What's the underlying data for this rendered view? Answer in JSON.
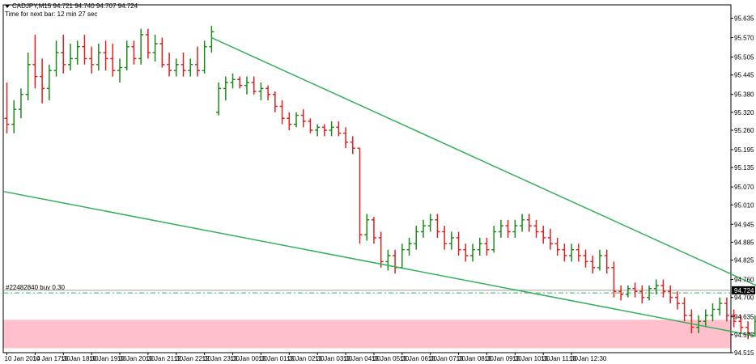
{
  "header": {
    "symbol_line": "CADJPY,M15  94.721 94.740 94.707 94.724",
    "timer_line": "Time for next bar: 12 min 27 sec"
  },
  "order": {
    "label": "#22482840 buy 0.30",
    "price": 94.715
  },
  "current_price": {
    "label": "94.724",
    "value": 94.724
  },
  "colors": {
    "bull": "#1a8a1a",
    "bear": "#e02020",
    "trendline": "#33b05a",
    "zone": "#ffc0cb",
    "arrow": "#e02020",
    "price_tag_bg": "#000000"
  },
  "chart_data": {
    "type": "bar",
    "title": "",
    "xlabel": "",
    "ylabel": "",
    "ylim": [
      94.515,
      95.68
    ],
    "yticks": [
      "95.635",
      "95.570",
      "95.505",
      "95.445",
      "95.380",
      "95.320",
      "95.260",
      "95.195",
      "95.135",
      "95.070",
      "95.010",
      "94.945",
      "94.885",
      "94.825",
      "94.760",
      "94.700",
      "94.635",
      "94.575",
      "94.515"
    ],
    "xticks": [
      "10 Jan 2014",
      "10 Jan 17:30",
      "10 Jan 18:30",
      "10 Jan 19:30",
      "10 Jan 20:30",
      "10 Jan 21:30",
      "12 Jan 22:30",
      "12 Jan 23:30",
      "13 Jan 00:30",
      "13 Jan 01:30",
      "13 Jan 02:30",
      "13 Jan 03:30",
      "13 Jan 04:30",
      "13 Jan 05:30",
      "13 Jan 06:30",
      "13 Jan 07:30",
      "13 Jan 08:30",
      "13 Jan 09:30",
      "13 Jan 10:30",
      "13 Jan 11:30",
      "13 Jan 12:30"
    ],
    "grid": false,
    "bars_per_tick": 4,
    "ohlc": [
      [
        95.3,
        95.42,
        95.25,
        95.28
      ],
      [
        95.28,
        95.36,
        95.25,
        95.33
      ],
      [
        95.33,
        95.4,
        95.3,
        95.38
      ],
      [
        95.38,
        95.52,
        95.36,
        95.48
      ],
      [
        95.48,
        95.58,
        95.4,
        95.44
      ],
      [
        95.44,
        95.5,
        95.35,
        95.4
      ],
      [
        95.4,
        95.48,
        95.36,
        95.46
      ],
      [
        95.46,
        95.56,
        95.44,
        95.52
      ],
      [
        95.52,
        95.58,
        95.45,
        95.48
      ],
      [
        95.48,
        95.55,
        95.46,
        95.5
      ],
      [
        95.5,
        95.56,
        95.48,
        95.54
      ],
      [
        95.54,
        95.58,
        95.48,
        95.5
      ],
      [
        95.5,
        95.54,
        95.45,
        95.48
      ],
      [
        95.48,
        95.55,
        95.46,
        95.52
      ],
      [
        95.52,
        95.56,
        95.46,
        95.5
      ],
      [
        95.5,
        95.55,
        95.44,
        95.46
      ],
      [
        95.46,
        95.5,
        95.42,
        95.47
      ],
      [
        95.47,
        95.56,
        95.46,
        95.54
      ],
      [
        95.54,
        95.56,
        95.48,
        95.5
      ],
      [
        95.5,
        95.6,
        95.48,
        95.58
      ],
      [
        95.58,
        95.6,
        95.5,
        95.52
      ],
      [
        95.52,
        95.58,
        95.49,
        95.55
      ],
      [
        95.55,
        95.57,
        95.47,
        95.48
      ],
      [
        95.48,
        95.52,
        95.44,
        95.46
      ],
      [
        95.46,
        95.5,
        95.44,
        95.48
      ],
      [
        95.48,
        95.52,
        95.44,
        95.46
      ],
      [
        95.46,
        95.5,
        95.44,
        95.48
      ],
      [
        95.48,
        95.54,
        95.44,
        95.46
      ],
      [
        95.46,
        95.56,
        95.45,
        95.54
      ],
      [
        95.54,
        95.61,
        95.52,
        95.59
      ],
      [
        95.32,
        95.42,
        95.31,
        95.4
      ],
      [
        95.4,
        95.44,
        95.36,
        95.42
      ],
      [
        95.42,
        95.45,
        95.4,
        95.43
      ],
      [
        95.43,
        95.44,
        95.4,
        95.41
      ],
      [
        95.41,
        95.44,
        95.38,
        95.42
      ],
      [
        95.42,
        95.44,
        95.38,
        95.39
      ],
      [
        95.39,
        95.42,
        95.36,
        95.4
      ],
      [
        95.4,
        95.41,
        95.36,
        95.38
      ],
      [
        95.38,
        95.39,
        95.32,
        95.34
      ],
      [
        95.34,
        95.36,
        95.28,
        95.3
      ],
      [
        95.3,
        95.32,
        95.26,
        95.28
      ],
      [
        95.28,
        95.32,
        95.27,
        95.31
      ],
      [
        95.31,
        95.33,
        95.27,
        95.29
      ],
      [
        95.29,
        95.3,
        95.25,
        95.26
      ],
      [
        95.26,
        95.28,
        95.24,
        95.27
      ],
      [
        95.27,
        95.28,
        95.24,
        95.26
      ],
      [
        95.26,
        95.29,
        95.24,
        95.27
      ],
      [
        95.27,
        95.29,
        95.24,
        95.25
      ],
      [
        95.25,
        95.27,
        95.2,
        95.22
      ],
      [
        95.22,
        95.24,
        95.18,
        95.2
      ],
      [
        95.2,
        95.2,
        94.88,
        94.91
      ],
      [
        94.91,
        94.98,
        94.89,
        94.96
      ],
      [
        94.96,
        94.97,
        94.88,
        94.9
      ],
      [
        94.9,
        94.92,
        94.8,
        94.82
      ],
      [
        94.82,
        94.86,
        94.79,
        94.84
      ],
      [
        94.84,
        94.86,
        94.78,
        94.8
      ],
      [
        94.8,
        94.88,
        94.8,
        94.86
      ],
      [
        94.86,
        94.9,
        94.84,
        94.88
      ],
      [
        94.88,
        94.94,
        94.86,
        94.92
      ],
      [
        94.92,
        94.96,
        94.9,
        94.94
      ],
      [
        94.94,
        94.98,
        94.92,
        94.96
      ],
      [
        94.96,
        94.98,
        94.9,
        94.92
      ],
      [
        94.92,
        94.94,
        94.86,
        94.88
      ],
      [
        94.88,
        94.92,
        94.86,
        94.9
      ],
      [
        94.9,
        94.92,
        94.84,
        94.86
      ],
      [
        94.86,
        94.88,
        94.82,
        94.84
      ],
      [
        94.84,
        94.88,
        94.82,
        94.86
      ],
      [
        94.86,
        94.9,
        94.84,
        94.88
      ],
      [
        94.88,
        94.9,
        94.84,
        94.86
      ],
      [
        94.86,
        94.94,
        94.85,
        94.92
      ],
      [
        94.92,
        94.96,
        94.9,
        94.94
      ],
      [
        94.94,
        94.96,
        94.9,
        94.92
      ],
      [
        94.92,
        94.96,
        94.9,
        94.94
      ],
      [
        94.94,
        94.98,
        94.92,
        94.96
      ],
      [
        94.96,
        94.98,
        94.92,
        94.94
      ],
      [
        94.94,
        94.96,
        94.9,
        94.92
      ],
      [
        94.92,
        94.94,
        94.88,
        94.9
      ],
      [
        94.9,
        94.93,
        94.86,
        94.88
      ],
      [
        94.88,
        94.9,
        94.84,
        94.86
      ],
      [
        94.86,
        94.88,
        94.82,
        94.84
      ],
      [
        94.84,
        94.88,
        94.82,
        94.86
      ],
      [
        94.86,
        94.88,
        94.82,
        94.84
      ],
      [
        94.84,
        94.86,
        94.8,
        94.82
      ],
      [
        94.82,
        94.84,
        94.78,
        94.8
      ],
      [
        94.8,
        94.86,
        94.79,
        94.84
      ],
      [
        94.84,
        94.86,
        94.78,
        94.8
      ],
      [
        94.8,
        94.82,
        94.7,
        94.72
      ],
      [
        94.72,
        94.74,
        94.69,
        94.71
      ],
      [
        94.71,
        94.74,
        94.7,
        94.73
      ],
      [
        94.73,
        94.75,
        94.7,
        94.72
      ],
      [
        94.72,
        94.74,
        94.68,
        94.7
      ],
      [
        94.7,
        94.74,
        94.69,
        94.73
      ],
      [
        94.73,
        94.76,
        94.71,
        94.74
      ],
      [
        94.74,
        94.76,
        94.7,
        94.72
      ],
      [
        94.72,
        94.74,
        94.68,
        94.7
      ],
      [
        94.7,
        94.72,
        94.66,
        94.68
      ],
      [
        94.68,
        94.7,
        94.62,
        94.64
      ],
      [
        94.64,
        94.66,
        94.58,
        94.6
      ],
      [
        94.6,
        94.64,
        94.58,
        94.62
      ],
      [
        94.62,
        94.66,
        94.6,
        94.64
      ],
      [
        94.64,
        94.68,
        94.62,
        94.66
      ],
      [
        94.66,
        94.7,
        94.64,
        94.68
      ],
      [
        94.68,
        94.7,
        94.62,
        94.64
      ],
      [
        94.64,
        94.66,
        94.6,
        94.62
      ],
      [
        94.62,
        94.64,
        94.58,
        94.6
      ],
      [
        94.6,
        94.62,
        94.56,
        94.58
      ],
      [
        94.58,
        94.64,
        94.57,
        94.62
      ],
      [
        94.62,
        94.7,
        94.61,
        94.68
      ],
      [
        94.68,
        94.74,
        94.67,
        94.72
      ]
    ],
    "trendlines": [
      {
        "name": "",
        "points": [
          [
            29,
            95.57
          ],
          [
            115,
            94.645
          ]
        ]
      },
      {
        "name": "",
        "points": [
          [
            -0.5,
            95.055
          ],
          [
            115,
            94.53
          ]
        ]
      }
    ],
    "zones": [
      {
        "from": 94.53,
        "to": 94.625
      }
    ],
    "annotations": [
      {
        "type": "arrow-up",
        "bar": 112.5,
        "price": 94.59
      }
    ]
  }
}
